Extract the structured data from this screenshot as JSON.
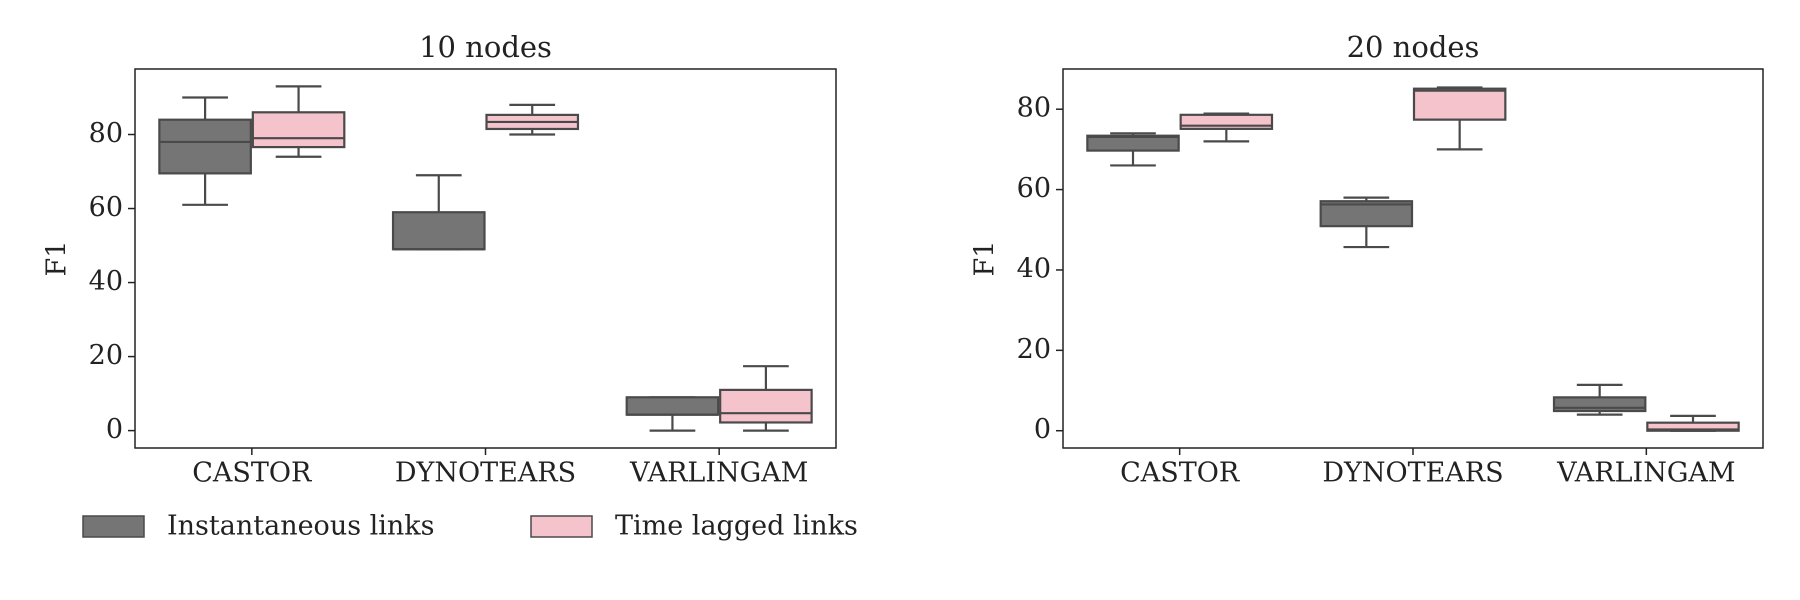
{
  "chart_data": [
    {
      "type": "box",
      "title": "10 nodes",
      "y_label": "F1",
      "categories": [
        "CASTOR",
        "DYNOTEARS",
        "VARLINGAM"
      ],
      "ylim": [
        -4.7,
        97.7
      ],
      "yticks": [
        0,
        20,
        40,
        60,
        80
      ],
      "series": [
        {
          "name": "Instantaneous links",
          "color": "#757575",
          "values": [
            {
              "min": 61,
              "q1": 69.5,
              "median": 78,
              "q3": 84,
              "max": 90
            },
            {
              "min": 49,
              "q1": 49,
              "median": 49,
              "q3": 59,
              "max": 69
            },
            {
              "min": 0,
              "q1": 4.3,
              "median": 4.3,
              "q3": 9,
              "max": 9
            }
          ]
        },
        {
          "name": "Time lagged links",
          "color": "#f5c3cc",
          "values": [
            {
              "min": 74,
              "q1": 76.6,
              "median": 79,
              "q3": 86,
              "max": 93
            },
            {
              "min": 80,
              "q1": 81.5,
              "median": 83.4,
              "q3": 85.3,
              "max": 88
            },
            {
              "min": 0,
              "q1": 2.2,
              "median": 4.7,
              "q3": 11,
              "max": 17.4
            }
          ]
        }
      ]
    },
    {
      "type": "box",
      "title": "20 nodes",
      "y_label": "F1",
      "categories": [
        "CASTOR",
        "DYNOTEARS",
        "VARLINGAM"
      ],
      "ylim": [
        -4.3,
        90
      ],
      "yticks": [
        0,
        20,
        40,
        60,
        80
      ],
      "series": [
        {
          "color": "#757575",
          "values": [
            {
              "min": 66,
              "q1": 69.7,
              "median": 73.1,
              "q3": 73.4,
              "max": 74
            },
            {
              "min": 45.7,
              "q1": 50.9,
              "median": 56.3,
              "q3": 57.1,
              "max": 58
            },
            {
              "min": 4,
              "q1": 4.9,
              "median": 5.7,
              "q3": 8.3,
              "max": 11.4
            }
          ]
        },
        {
          "color": "#f5c3cc",
          "values": [
            {
              "min": 72,
              "q1": 75.1,
              "median": 75.9,
              "q3": 78.6,
              "max": 78.9
            },
            {
              "min": 70,
              "q1": 77.4,
              "median": 84.6,
              "q3": 85.1,
              "max": 85.4
            },
            {
              "min": 0,
              "q1": 0,
              "median": 0.3,
              "q3": 2,
              "max": 3.7
            }
          ]
        }
      ]
    }
  ]
}
